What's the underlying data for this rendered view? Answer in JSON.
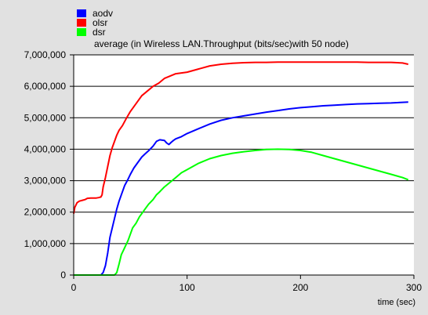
{
  "chart_data": {
    "type": "line",
    "title": "average (in Wireless LAN.Throughput (bits/sec)with 50 node)",
    "xlabel": "time (sec)",
    "ylabel": "",
    "xlim": [
      0,
      300
    ],
    "ylim": [
      0,
      7000000
    ],
    "x_ticks": [
      0,
      100,
      200,
      300
    ],
    "x_tick_labels": [
      "0",
      "100",
      "200",
      "300"
    ],
    "y_ticks": [
      0,
      1000000,
      2000000,
      3000000,
      4000000,
      5000000,
      6000000,
      7000000
    ],
    "y_tick_labels": [
      "0",
      "1,000,000",
      "2,000,000",
      "3,000,000",
      "4,000,000",
      "5,000,000",
      "6,000,000",
      "7,000,000"
    ],
    "grid": "horizontal",
    "legend_position": "top-left",
    "background_color": "#e1e1e1",
    "plot_background_color": "#ffffff",
    "series": [
      {
        "name": "aodv",
        "color": "#0000ff",
        "x": [
          0,
          10,
          20,
          24,
          26,
          28,
          30,
          32,
          34,
          36,
          38,
          40,
          42,
          45,
          48,
          50,
          53,
          56,
          60,
          63,
          66,
          70,
          73,
          76,
          80,
          82,
          84,
          86,
          88,
          90,
          95,
          100,
          110,
          120,
          130,
          140,
          150,
          160,
          170,
          180,
          190,
          200,
          210,
          220,
          230,
          240,
          250,
          260,
          270,
          280,
          290,
          295
        ],
        "y": [
          0,
          0,
          0,
          0,
          80000,
          300000,
          700000,
          1200000,
          1500000,
          1800000,
          2100000,
          2350000,
          2550000,
          2850000,
          3050000,
          3200000,
          3400000,
          3550000,
          3750000,
          3850000,
          3950000,
          4100000,
          4250000,
          4300000,
          4280000,
          4200000,
          4150000,
          4220000,
          4280000,
          4330000,
          4400000,
          4500000,
          4650000,
          4800000,
          4920000,
          5000000,
          5060000,
          5120000,
          5180000,
          5230000,
          5280000,
          5320000,
          5350000,
          5380000,
          5400000,
          5420000,
          5440000,
          5450000,
          5460000,
          5470000,
          5490000,
          5500000
        ]
      },
      {
        "name": "olsr",
        "color": "#ff0000",
        "x": [
          0,
          1,
          3,
          5,
          8,
          10,
          12,
          15,
          18,
          20,
          22,
          24,
          25,
          26,
          28,
          30,
          32,
          34,
          36,
          38,
          40,
          43,
          46,
          50,
          55,
          60,
          65,
          70,
          75,
          80,
          90,
          100,
          110,
          120,
          130,
          140,
          150,
          160,
          170,
          180,
          190,
          200,
          210,
          220,
          230,
          240,
          250,
          260,
          270,
          280,
          290,
          295
        ],
        "y": [
          1950000,
          2150000,
          2300000,
          2350000,
          2380000,
          2400000,
          2440000,
          2450000,
          2450000,
          2450000,
          2460000,
          2480000,
          2550000,
          2800000,
          3100000,
          3450000,
          3800000,
          4050000,
          4250000,
          4450000,
          4600000,
          4750000,
          4950000,
          5200000,
          5450000,
          5700000,
          5850000,
          6000000,
          6100000,
          6250000,
          6400000,
          6450000,
          6550000,
          6650000,
          6700000,
          6730000,
          6750000,
          6760000,
          6760000,
          6770000,
          6770000,
          6770000,
          6770000,
          6770000,
          6770000,
          6770000,
          6770000,
          6760000,
          6760000,
          6760000,
          6740000,
          6700000
        ]
      },
      {
        "name": "dsr",
        "color": "#00ff00",
        "x": [
          0,
          10,
          20,
          30,
          36,
          38,
          40,
          42,
          44,
          46,
          48,
          50,
          52,
          55,
          58,
          60,
          63,
          66,
          70,
          73,
          76,
          80,
          85,
          90,
          95,
          100,
          110,
          120,
          130,
          140,
          150,
          160,
          170,
          180,
          190,
          200,
          210,
          220,
          230,
          240,
          250,
          260,
          270,
          280,
          290,
          295
        ],
        "y": [
          0,
          0,
          0,
          0,
          0,
          80000,
          350000,
          650000,
          800000,
          950000,
          1100000,
          1300000,
          1500000,
          1650000,
          1850000,
          1950000,
          2100000,
          2250000,
          2400000,
          2550000,
          2650000,
          2800000,
          2950000,
          3100000,
          3250000,
          3350000,
          3550000,
          3700000,
          3800000,
          3870000,
          3920000,
          3960000,
          3990000,
          4000000,
          3990000,
          3960000,
          3900000,
          3800000,
          3700000,
          3600000,
          3500000,
          3400000,
          3300000,
          3200000,
          3100000,
          3030000
        ]
      }
    ]
  }
}
